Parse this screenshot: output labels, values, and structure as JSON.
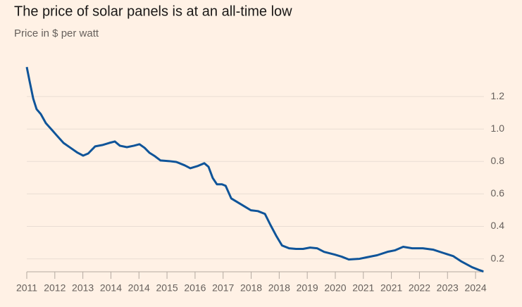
{
  "chart_data": {
    "type": "line",
    "title": "The price of solar panels is at an all-time low",
    "subtitle": "Price in $ per watt",
    "x": [
      0,
      0.1,
      0.23,
      0.35,
      0.5,
      0.68,
      0.93,
      1.06,
      1.31,
      1.56,
      1.81,
      2.01,
      2.19,
      2.44,
      2.69,
      2.94,
      3.14,
      3.32,
      3.57,
      3.82,
      4.02,
      4.2,
      4.37,
      4.57,
      4.77,
      5.08,
      5.33,
      5.63,
      5.83,
      6.08,
      6.33,
      6.48,
      6.63,
      6.78,
      6.96,
      7.09,
      7.29,
      7.54,
      7.79,
      7.99,
      8.24,
      8.49,
      8.69,
      8.89,
      9.1,
      9.35,
      9.6,
      9.85,
      10.1,
      10.35,
      10.6,
      10.98,
      11.23,
      11.48,
      11.86,
      12.11,
      12.49,
      12.86,
      13.12,
      13.42,
      13.74,
      14.12,
      14.5,
      14.87,
      15.2,
      15.5,
      15.88,
      16.13,
      16.28
    ],
    "series": [
      {
        "color": "#0f5499",
        "values": [
          1.382,
          1.295,
          1.187,
          1.122,
          1.092,
          1.036,
          0.988,
          0.962,
          0.914,
          0.884,
          0.854,
          0.836,
          0.849,
          0.893,
          0.901,
          0.914,
          0.923,
          0.897,
          0.888,
          0.897,
          0.906,
          0.884,
          0.854,
          0.832,
          0.806,
          0.802,
          0.797,
          0.776,
          0.758,
          0.771,
          0.789,
          0.767,
          0.698,
          0.659,
          0.659,
          0.65,
          0.572,
          0.546,
          0.52,
          0.499,
          0.494,
          0.477,
          0.408,
          0.343,
          0.282,
          0.265,
          0.261,
          0.261,
          0.269,
          0.265,
          0.243,
          0.226,
          0.213,
          0.196,
          0.2,
          0.209,
          0.222,
          0.243,
          0.252,
          0.274,
          0.265,
          0.265,
          0.256,
          0.235,
          0.217,
          0.183,
          0.148,
          0.131,
          0.122
        ]
      }
    ],
    "xlim": [
      0,
      16.3
    ],
    "xticks": [
      {
        "value": 0,
        "label": "2011"
      },
      {
        "value": 1,
        "label": "2012"
      },
      {
        "value": 2,
        "label": "2013"
      },
      {
        "value": 3,
        "label": "2014"
      },
      {
        "value": 4,
        "label": "2014"
      },
      {
        "value": 5,
        "label": "2015"
      },
      {
        "value": 6,
        "label": "2016"
      },
      {
        "value": 7,
        "label": "2017"
      },
      {
        "value": 8,
        "label": "2018"
      },
      {
        "value": 9,
        "label": "2018"
      },
      {
        "value": 10,
        "label": "2019"
      },
      {
        "value": 11,
        "label": "2020"
      },
      {
        "value": 12,
        "label": "2021"
      },
      {
        "value": 13,
        "label": "2021"
      },
      {
        "value": 14,
        "label": "2022"
      },
      {
        "value": 15,
        "label": "2023"
      },
      {
        "value": 16,
        "label": "2024"
      }
    ],
    "ylim": [
      0.12,
      1.4
    ],
    "yticks": [
      0.2,
      0.4,
      0.6,
      0.8,
      {
        "value": 1,
        "label": "1.0"
      },
      1.2
    ],
    "grid": true
  }
}
